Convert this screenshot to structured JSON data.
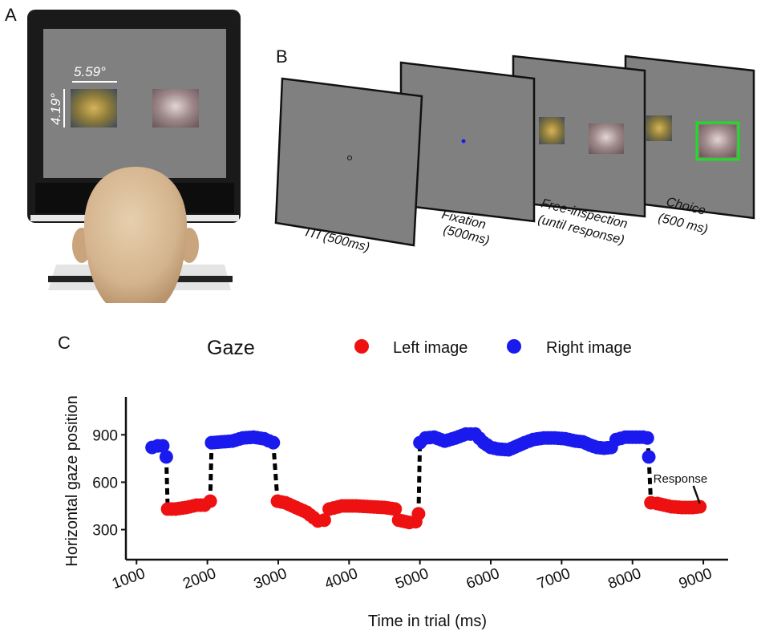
{
  "panels": {
    "a": "A",
    "b": "B",
    "c": "C"
  },
  "panel_a": {
    "width_label": "5.59°",
    "height_label": "4.19°"
  },
  "panel_b": {
    "screens": [
      {
        "caption_line1": "ITI (500ms)",
        "caption_line2": ""
      },
      {
        "caption_line1": "Fixation",
        "caption_line2": "(500ms)"
      },
      {
        "caption_line1": "Free-inspection",
        "caption_line2": "(until response)"
      },
      {
        "caption_line1": "Choice",
        "caption_line2": "(500 ms)"
      }
    ]
  },
  "colors": {
    "left": "#ee1111",
    "right": "#1a1aee",
    "trace": "#000000",
    "screen": "#7f7f7f",
    "choice_frame": "#22dd22"
  },
  "chart_data": {
    "type": "scatter",
    "title": "Gaze",
    "xlabel": "Time in trial (ms)",
    "ylabel": "Horizontal gaze position",
    "xticks": [
      1000,
      2000,
      3000,
      4000,
      5000,
      6000,
      7000,
      8000,
      9000
    ],
    "yticks": [
      300,
      600,
      900
    ],
    "xlim": [
      850,
      9350
    ],
    "ylim": [
      110,
      1140
    ],
    "annotation": {
      "text": "Response",
      "x": 8950,
      "y": 445
    },
    "series": [
      {
        "name": "Left image",
        "color": "#ee1111"
      },
      {
        "name": "Right image",
        "color": "#1a1aee"
      }
    ],
    "trace": [
      [
        1220,
        820,
        1
      ],
      [
        1300,
        830,
        1
      ],
      [
        1370,
        830,
        1
      ],
      [
        1420,
        760,
        1
      ],
      [
        1440,
        430,
        0
      ],
      [
        1550,
        430,
        0
      ],
      [
        1700,
        440,
        0
      ],
      [
        1850,
        455,
        0
      ],
      [
        1960,
        455,
        0
      ],
      [
        2040,
        480,
        0
      ],
      [
        2060,
        850,
        1
      ],
      [
        2200,
        855,
        1
      ],
      [
        2350,
        860,
        1
      ],
      [
        2500,
        880,
        1
      ],
      [
        2650,
        885,
        1
      ],
      [
        2800,
        875,
        1
      ],
      [
        2930,
        850,
        1
      ],
      [
        2990,
        480,
        0
      ],
      [
        3100,
        470,
        0
      ],
      [
        3150,
        460,
        0
      ],
      [
        3350,
        420,
        0
      ],
      [
        3400,
        410,
        0
      ],
      [
        3500,
        375,
        0
      ],
      [
        3560,
        355,
        0
      ],
      [
        3650,
        360,
        0
      ],
      [
        3720,
        430,
        0
      ],
      [
        3900,
        450,
        0
      ],
      [
        4100,
        450,
        0
      ],
      [
        4300,
        445,
        0
      ],
      [
        4500,
        440,
        0
      ],
      [
        4650,
        430,
        0
      ],
      [
        4700,
        360,
        0
      ],
      [
        4850,
        345,
        0
      ],
      [
        4940,
        350,
        0
      ],
      [
        4980,
        400,
        0
      ],
      [
        5000,
        850,
        1
      ],
      [
        5080,
        880,
        1
      ],
      [
        5200,
        885,
        1
      ],
      [
        5350,
        860,
        1
      ],
      [
        5500,
        880,
        1
      ],
      [
        5650,
        905,
        1
      ],
      [
        5780,
        905,
        1
      ],
      [
        5900,
        850,
        1
      ],
      [
        6000,
        820,
        1
      ],
      [
        6100,
        810,
        1
      ],
      [
        6250,
        805,
        1
      ],
      [
        6480,
        850,
        1
      ],
      [
        6600,
        870,
        1
      ],
      [
        6750,
        880,
        1
      ],
      [
        6900,
        880,
        1
      ],
      [
        7050,
        875,
        1
      ],
      [
        7200,
        860,
        1
      ],
      [
        7300,
        855,
        1
      ],
      [
        7400,
        835,
        1
      ],
      [
        7500,
        820,
        1
      ],
      [
        7600,
        815,
        1
      ],
      [
        7700,
        820,
        1
      ],
      [
        7770,
        870,
        1
      ],
      [
        7900,
        885,
        1
      ],
      [
        8050,
        885,
        1
      ],
      [
        8150,
        885,
        1
      ],
      [
        8210,
        880,
        1
      ],
      [
        8230,
        760,
        1
      ],
      [
        8260,
        470,
        0
      ],
      [
        8350,
        465,
        0
      ],
      [
        8450,
        455,
        0
      ],
      [
        8550,
        445,
        0
      ],
      [
        8700,
        440,
        0
      ],
      [
        8850,
        440,
        0
      ],
      [
        8950,
        445,
        0
      ]
    ]
  }
}
